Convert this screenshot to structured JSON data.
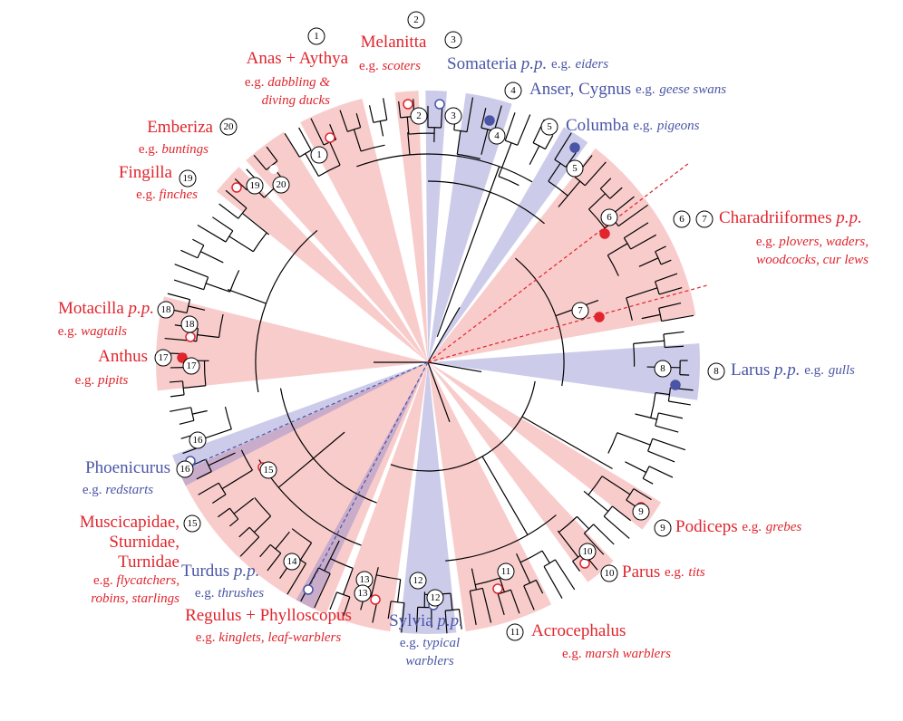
{
  "eg_prefix": "e.g.",
  "clades": [
    {
      "numbers": [
        "1"
      ],
      "name": [
        "Anas + Aythya"
      ],
      "example": [
        "dabbling &",
        "diving ducks"
      ],
      "color": "#e0252d"
    },
    {
      "numbers": [
        "2"
      ],
      "name": [
        "Melanitta"
      ],
      "example": [
        "scoters"
      ],
      "color": "#e0252d"
    },
    {
      "numbers": [
        "3"
      ],
      "name": [
        "Somateria"
      ],
      "pp": "p.p.",
      "example": [
        "eiders"
      ],
      "color": "#4a55a5"
    },
    {
      "numbers": [
        "4"
      ],
      "name": [
        "Anser, Cygnus"
      ],
      "example": [
        "geese swans"
      ],
      "color": "#4a55a5"
    },
    {
      "numbers": [
        "5"
      ],
      "name": [
        "Columba"
      ],
      "example": [
        "pigeons"
      ],
      "color": "#4a55a5"
    },
    {
      "numbers": [
        "6",
        "7"
      ],
      "name": [
        "Charadriiformes"
      ],
      "pp": "p.p.",
      "example": [
        "plovers, waders,",
        "woodcocks, cur lews"
      ],
      "color": "#e0252d"
    },
    {
      "numbers": [
        "8"
      ],
      "name": [
        "Larus"
      ],
      "pp": "p.p.",
      "example": [
        "gulls"
      ],
      "color": "#4a55a5"
    },
    {
      "numbers": [
        "9"
      ],
      "name": [
        "Podiceps"
      ],
      "example": [
        "grebes"
      ],
      "color": "#e0252d"
    },
    {
      "numbers": [
        "10"
      ],
      "name": [
        "Parus"
      ],
      "example": [
        "tits"
      ],
      "color": "#e0252d"
    },
    {
      "numbers": [
        "11"
      ],
      "name": [
        "Acrocephalus"
      ],
      "example": [
        "marsh warblers"
      ],
      "color": "#e0252d"
    },
    {
      "numbers": [
        "12"
      ],
      "name": [
        "Sylvia"
      ],
      "pp": "p.p.",
      "example": [
        "typical",
        "warblers"
      ],
      "color": "#4a55a5"
    },
    {
      "numbers": [
        "13"
      ],
      "name": [
        "Regulus + Phylloscopus"
      ],
      "example": [
        "kinglets, leaf-warblers"
      ],
      "color": "#e0252d"
    },
    {
      "numbers": [
        "14"
      ],
      "name": [
        "Turdus"
      ],
      "pp": "p.p.",
      "example": [
        "thrushes"
      ],
      "color": "#4a55a5"
    },
    {
      "numbers": [
        "15"
      ],
      "name": [
        "Muscicapidae,",
        "Sturnidae,",
        "Turnidae"
      ],
      "example": [
        "flycatchers,",
        "robins, starlings"
      ],
      "color": "#e0252d"
    },
    {
      "numbers": [
        "16"
      ],
      "name": [
        "Phoenicurus"
      ],
      "example": [
        "redstarts"
      ],
      "color": "#4a55a5"
    },
    {
      "numbers": [
        "17"
      ],
      "name": [
        "Anthus"
      ],
      "example": [
        "pipits"
      ],
      "color": "#e0252d"
    },
    {
      "numbers": [
        "18"
      ],
      "name": [
        "Motacilla"
      ],
      "pp": "p.p.",
      "example": [
        "wagtails"
      ],
      "color": "#e0252d"
    },
    {
      "numbers": [
        "19"
      ],
      "name": [
        "Fingilla"
      ],
      "example": [
        "finches"
      ],
      "color": "#e0252d"
    },
    {
      "numbers": [
        "20"
      ],
      "name": [
        "Emberiza"
      ],
      "example": [
        "buntings"
      ],
      "color": "#e0252d"
    }
  ]
}
